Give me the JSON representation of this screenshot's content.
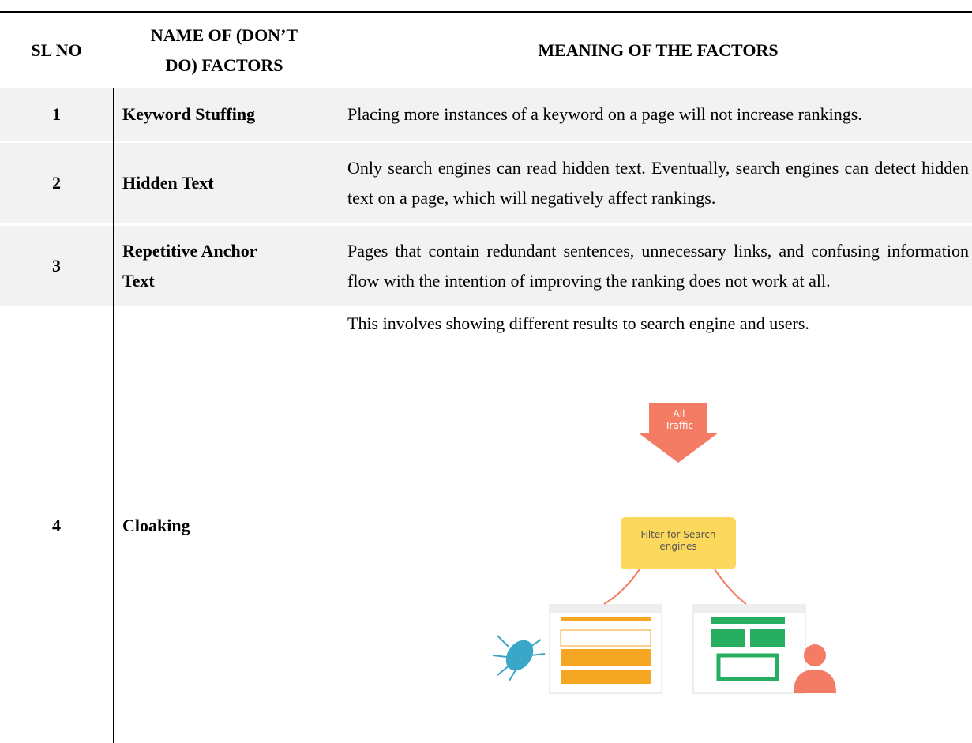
{
  "table": {
    "header": [
      "SL NO",
      "NAME OF (DON’T DO) FACTORS",
      "MEANING OF THE FACTORS"
    ],
    "rows": [
      [
        "1",
        "Keyword Stuffing",
        "Placing more instances of a keyword on a page will not increase rankings."
      ],
      [
        "2",
        "Hidden Text",
        "Only search engines can read hidden text. Eventually, search engines can detect hidden text on a page, which will negatively affect rankings."
      ],
      [
        "3",
        "Repetitive Anchor Text",
        "Pages that contain redundant sentences, unnecessary links, and confusing information flow with the intention of improving the ranking does not work at all."
      ],
      [
        "4",
        "Cloaking",
        "This involves showing different results to search engine and users."
      ]
    ],
    "figure": {
      "arrow_label": "All Traffic",
      "filter_label": "Filter for Search engines"
    }
  }
}
